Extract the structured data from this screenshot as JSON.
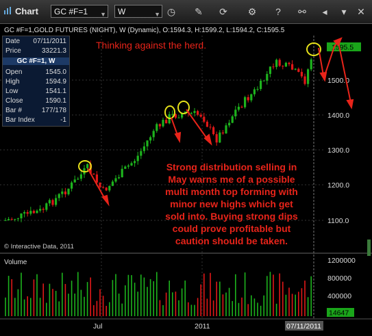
{
  "toolbar": {
    "title": "Chart",
    "symbol_value": "GC #F=1",
    "interval_value": "W"
  },
  "chart": {
    "header_text": "GC #F=1,GOLD FUTURES (NIGHT), W (Dynamic), O:1594.3, H:1599.2, L:1594.2, C:1595.5",
    "current_price_label": "1595.5",
    "copyright": "© Interactive Data, 2011",
    "price_ticks": [
      "1500.0",
      "1400.0",
      "1300.0",
      "1200.0",
      "1100.0"
    ],
    "date_ticks": [
      "Jul",
      "2011",
      "07/11/2011"
    ],
    "colors": {
      "up": "#1db31d",
      "down": "#e01818",
      "annotation": "#e8241a",
      "circle": "#e7e21a",
      "background": "#000000"
    }
  },
  "info_box": {
    "rows": [
      {
        "key": "Date",
        "value": "07/11/2011"
      },
      {
        "key": "Price",
        "value": "33221.3"
      }
    ],
    "symbol_header": "GC #F=1, W",
    "rows2": [
      {
        "key": "Open",
        "value": "1545.0"
      },
      {
        "key": "High",
        "value": "1594.9"
      },
      {
        "key": "Low",
        "value": "1541.1"
      },
      {
        "key": "Close",
        "value": "1590.1"
      },
      {
        "key": "Bar #",
        "value": "177/178"
      },
      {
        "key": "Bar Index",
        "value": "-1"
      }
    ]
  },
  "annotations": {
    "headline": "Thinking against the herd.",
    "body_lines": [
      "Strong distribution selling in",
      "May warns me of a possible",
      "multi month top forming with",
      "minor new highs which get",
      "sold into. Buying strong dips",
      "could prove profitable but",
      "caution should be taken."
    ]
  },
  "volume_panel": {
    "label": "Volume",
    "ticks": [
      "1200000",
      "800000",
      "400000"
    ],
    "current_label": "14647"
  }
}
